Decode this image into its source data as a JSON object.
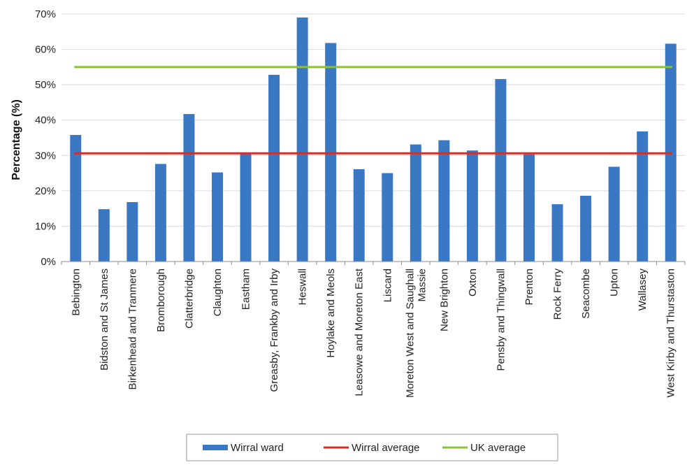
{
  "chart_data": {
    "type": "bar",
    "ylabel": "Percentage (%)",
    "xlabel": "",
    "ylim": [
      0,
      70
    ],
    "yticks": [
      "0%",
      "10%",
      "20%",
      "30%",
      "40%",
      "50%",
      "60%",
      "70%"
    ],
    "grid": true,
    "legend_position": "bottom",
    "categories": [
      "Bebington",
      "Bidston and St James",
      "Birkenhead and Tranmere",
      "Bromborough",
      "Clatterbridge",
      "Claughton",
      "Eastham",
      "Greasby, Frankby and Irby",
      "Heswall",
      "Hoylake and Meols",
      "Leasowe and Moreton East",
      "Liscard",
      [
        "Moreton West and Saughall",
        "Massie"
      ],
      "New Brighton",
      "Oxton",
      "Pensby and Thingwall",
      "Prenton",
      "Rock Ferry",
      "Seacombe",
      "Upton",
      "Wallasey",
      "West Kirby and Thurstaston"
    ],
    "series": [
      {
        "name": "Wirral ward",
        "kind": "bar",
        "color": "#3a78c3",
        "values": [
          35.8,
          14.8,
          16.8,
          27.6,
          41.7,
          25.2,
          30.6,
          52.8,
          69.0,
          61.8,
          26.1,
          25.0,
          33.1,
          34.3,
          31.4,
          51.6,
          30.3,
          16.2,
          18.6,
          26.8,
          36.8,
          61.6
        ]
      },
      {
        "name": "Wirral average",
        "kind": "line",
        "color": "#d0302a",
        "value": 30.6
      },
      {
        "name": "UK average",
        "kind": "line",
        "color": "#8cc03c",
        "value": 55.0
      }
    ]
  }
}
